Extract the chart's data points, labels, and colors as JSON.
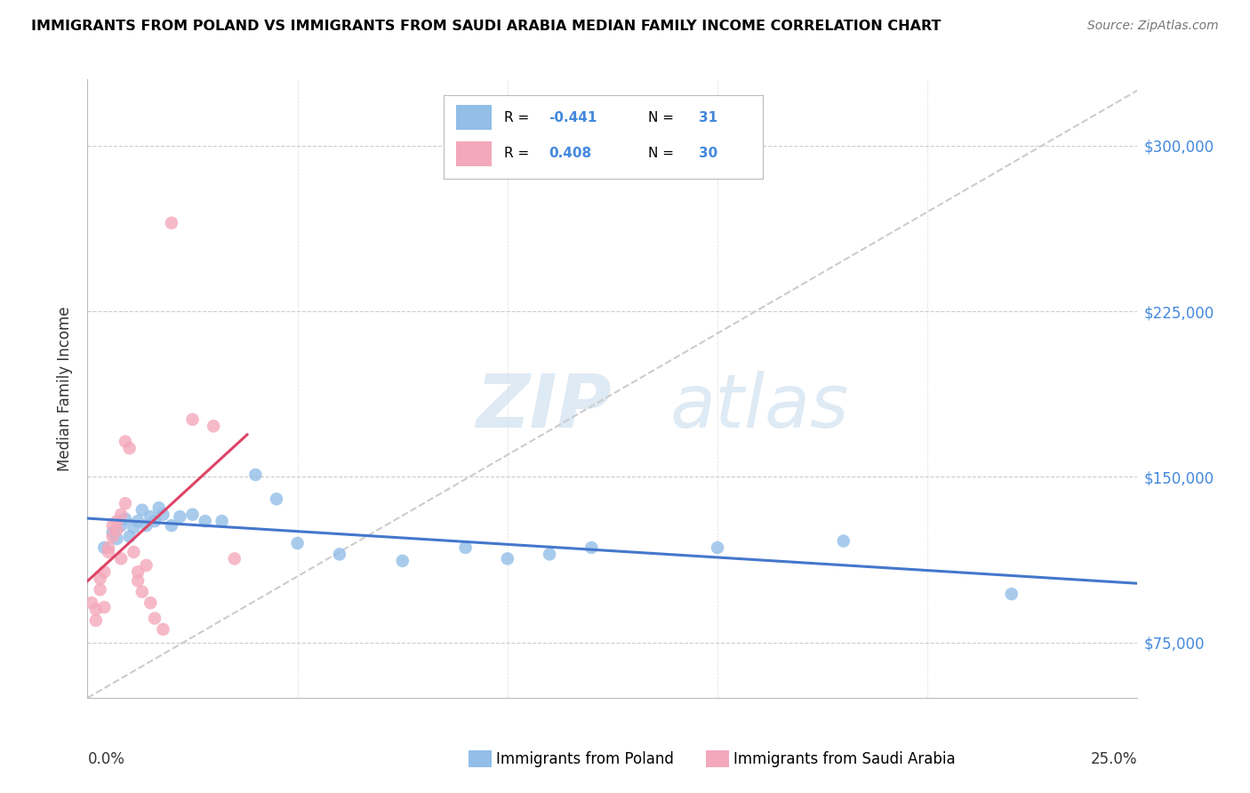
{
  "title": "IMMIGRANTS FROM POLAND VS IMMIGRANTS FROM SAUDI ARABIA MEDIAN FAMILY INCOME CORRELATION CHART",
  "source": "Source: ZipAtlas.com",
  "ylabel": "Median Family Income",
  "yticks": [
    75000,
    150000,
    225000,
    300000
  ],
  "ytick_labels": [
    "$75,000",
    "$150,000",
    "$225,000",
    "$300,000"
  ],
  "xlim": [
    0.0,
    0.25
  ],
  "ylim": [
    50000,
    330000
  ],
  "legend_blue_r": "-0.441",
  "legend_blue_n": "31",
  "legend_pink_r": "0.408",
  "legend_pink_n": "30",
  "legend_label_blue": "Immigrants from Poland",
  "legend_label_pink": "Immigrants from Saudi Arabia",
  "blue_color": "#92BEE8",
  "pink_color": "#F4A8BB",
  "blue_line_color": "#4477CC",
  "pink_line_color": "#DD4466",
  "diag_line_color": "#CCCCCC",
  "right_label_color": "#4488DD",
  "blue_scatter_x": [
    0.004,
    0.006,
    0.007,
    0.008,
    0.009,
    0.01,
    0.011,
    0.012,
    0.013,
    0.014,
    0.015,
    0.016,
    0.017,
    0.018,
    0.02,
    0.022,
    0.025,
    0.028,
    0.032,
    0.04,
    0.045,
    0.05,
    0.06,
    0.075,
    0.09,
    0.1,
    0.11,
    0.12,
    0.15,
    0.18,
    0.22
  ],
  "blue_scatter_y": [
    118000,
    125000,
    122000,
    128000,
    131000,
    123000,
    127000,
    130000,
    135000,
    128000,
    132000,
    130000,
    136000,
    133000,
    128000,
    132000,
    133000,
    130000,
    130000,
    151000,
    140000,
    120000,
    115000,
    112000,
    118000,
    113000,
    115000,
    118000,
    118000,
    121000,
    97000
  ],
  "pink_scatter_x": [
    0.001,
    0.002,
    0.002,
    0.003,
    0.003,
    0.004,
    0.004,
    0.005,
    0.005,
    0.006,
    0.006,
    0.007,
    0.007,
    0.008,
    0.008,
    0.009,
    0.009,
    0.01,
    0.011,
    0.012,
    0.012,
    0.013,
    0.014,
    0.015,
    0.016,
    0.018,
    0.02,
    0.025,
    0.03,
    0.035
  ],
  "pink_scatter_y": [
    93000,
    85000,
    90000,
    99000,
    104000,
    91000,
    107000,
    118000,
    116000,
    123000,
    128000,
    126000,
    130000,
    133000,
    113000,
    138000,
    166000,
    163000,
    116000,
    107000,
    103000,
    98000,
    110000,
    93000,
    86000,
    81000,
    265000,
    176000,
    173000,
    113000
  ]
}
